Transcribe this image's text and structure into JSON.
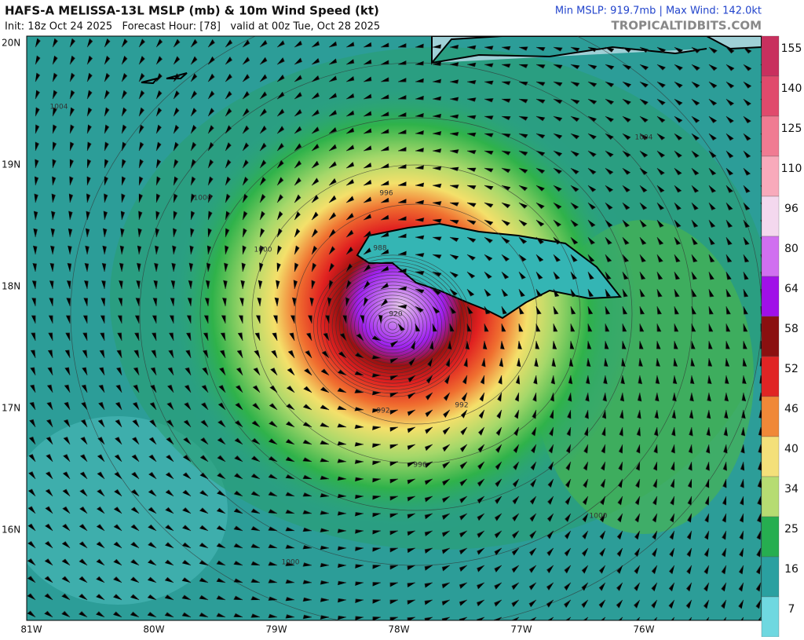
{
  "header": {
    "title": "HAFS-A MELISSA-13L MSLP (mb) & 10m Wind Speed (kt)",
    "subtitle": "Init: 18z Oct 24 2025   Forecast Hour: [78]   valid at 00z Tue, Oct 28 2025",
    "stats": "Min MSLP: 919.7mb | Max Wind: 142.0kt",
    "source": "TROPICALTIDBITS.COM"
  },
  "map": {
    "lat_labels": [
      "20N",
      "19N",
      "18N",
      "17N",
      "16N"
    ],
    "lon_labels": [
      "81W",
      "80W",
      "79W",
      "78W",
      "77W",
      "76W"
    ],
    "contour_labels": [
      "1004",
      "1000",
      "1000",
      "996",
      "988",
      "920",
      "992",
      "992",
      "996",
      "1000",
      "1004",
      "1000"
    ]
  },
  "colorbar": {
    "labels": [
      155,
      140,
      125,
      110,
      96,
      80,
      64,
      58,
      52,
      46,
      40,
      34,
      25,
      16,
      7
    ]
  }
}
